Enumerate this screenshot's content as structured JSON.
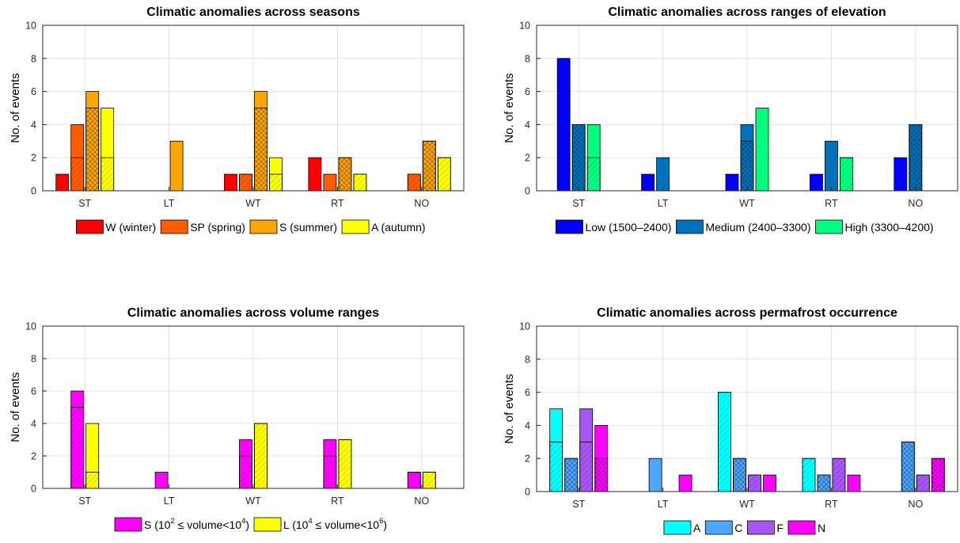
{
  "chart_data": [
    {
      "id": "seasons",
      "type": "bar",
      "title": "Climatic anomalies across seasons",
      "ylabel": "No. of events",
      "xlabel": "",
      "ylim": [
        0,
        10
      ],
      "yticks": [
        "0",
        "2",
        "4",
        "6",
        "8",
        "10"
      ],
      "grid": true,
      "legend": "bottom",
      "categories": [
        "ST",
        "LT",
        "WT",
        "RT",
        "NO"
      ],
      "series": [
        {
          "name": "W (winter)",
          "color": "#ff0000",
          "values": [
            1,
            0,
            1,
            2,
            0
          ],
          "hatched_values": [
            0,
            0,
            0,
            0,
            0
          ],
          "hatch": "none"
        },
        {
          "name": "SP (spring)",
          "color": "#ff5c00",
          "values": [
            4,
            0,
            1,
            1,
            1
          ],
          "hatched_values": [
            2,
            0,
            1,
            0,
            1
          ],
          "hatch": "diag"
        },
        {
          "name": "S (summer)",
          "color": "#ffa500",
          "values": [
            6,
            3,
            6,
            2,
            3
          ],
          "hatched_values": [
            5,
            0,
            5,
            2,
            3
          ],
          "hatch": "cross"
        },
        {
          "name": "A (autumn)",
          "color": "#ffff00",
          "values": [
            5,
            0,
            2,
            1,
            2
          ],
          "hatched_values": [
            2,
            0,
            1,
            1,
            2
          ],
          "hatch": "diag"
        }
      ]
    },
    {
      "id": "elevation",
      "type": "bar",
      "title": "Climatic anomalies across ranges of elevation",
      "ylabel": "No. of events",
      "xlabel": "",
      "ylim": [
        0,
        10
      ],
      "yticks": [
        "0",
        "2",
        "4",
        "6",
        "8",
        "10"
      ],
      "grid": true,
      "legend": "bottom",
      "categories": [
        "ST",
        "LT",
        "WT",
        "RT",
        "NO"
      ],
      "series": [
        {
          "name": "Low (1500–2400)",
          "color": "#0000ff",
          "values": [
            8,
            1,
            1,
            1,
            2
          ],
          "hatched_values": [
            4,
            0,
            0,
            0,
            0
          ],
          "hatch": "none"
        },
        {
          "name": "Medium (2400–3300)",
          "color": "#0072bd",
          "values": [
            4,
            2,
            4,
            3,
            4
          ],
          "hatched_values": [
            4,
            0,
            3,
            0,
            4
          ],
          "hatch": "cross"
        },
        {
          "name": "High (3300–4200)",
          "color": "#00ff7f",
          "values": [
            4,
            0,
            5,
            2,
            0
          ],
          "hatched_values": [
            2,
            0,
            0,
            2,
            0
          ],
          "hatch": "diag"
        }
      ]
    },
    {
      "id": "volume",
      "type": "bar",
      "title": "Climatic anomalies across volume ranges",
      "ylabel": "No. of events",
      "xlabel": "",
      "ylim": [
        0,
        10
      ],
      "yticks": [
        "0",
        "2",
        "4",
        "6",
        "8",
        "10"
      ],
      "grid": true,
      "legend": "bottom",
      "categories": [
        "ST",
        "LT",
        "WT",
        "RT",
        "NO"
      ],
      "series": [
        {
          "name": "S (10^2 ≤ volume<10^4)",
          "legend_parts": [
            "S (10",
            "2",
            " ≤ volume<10",
            "4",
            ")"
          ],
          "color": "#ff00ff",
          "values": [
            6,
            1,
            3,
            3,
            1
          ],
          "hatched_values": [
            5,
            0,
            2,
            2,
            1
          ],
          "hatch": "diag"
        },
        {
          "name": "L (10^4 ≤ volume<10^6)",
          "legend_parts": [
            "L (10",
            "4",
            " ≤ volume<10",
            "6",
            ")"
          ],
          "color": "#ffff00",
          "values": [
            4,
            0,
            4,
            3,
            1
          ],
          "hatched_values": [
            1,
            0,
            4,
            3,
            1
          ],
          "hatch": "diag"
        }
      ]
    },
    {
      "id": "permafrost",
      "type": "bar",
      "title": "Climatic anomalies across permafrost occurrence",
      "ylabel": "No. of events",
      "xlabel": "",
      "ylim": [
        0,
        10
      ],
      "yticks": [
        "0",
        "2",
        "4",
        "6",
        "8",
        "10"
      ],
      "grid": true,
      "legend": "bottom",
      "categories": [
        "ST",
        "LT",
        "WT",
        "RT",
        "NO"
      ],
      "series": [
        {
          "name": "A",
          "color": "#00ffff",
          "values": [
            5,
            0,
            6,
            2,
            0
          ],
          "hatched_values": [
            3,
            0,
            6,
            2,
            0
          ],
          "hatch": "diag"
        },
        {
          "name": "C",
          "color": "#4da6ff",
          "values": [
            2,
            2,
            2,
            1,
            3
          ],
          "hatched_values": [
            2,
            0,
            2,
            1,
            3
          ],
          "hatch": "cross"
        },
        {
          "name": "F",
          "color": "#a855f7",
          "values": [
            5,
            0,
            1,
            2,
            1
          ],
          "hatched_values": [
            3,
            0,
            1,
            2,
            1
          ],
          "hatch": "diag"
        },
        {
          "name": "N",
          "color": "#ff00ff",
          "values": [
            4,
            1,
            1,
            1,
            2
          ],
          "hatched_values": [
            2,
            0,
            0,
            0,
            2
          ],
          "hatch": "cross"
        }
      ]
    }
  ]
}
